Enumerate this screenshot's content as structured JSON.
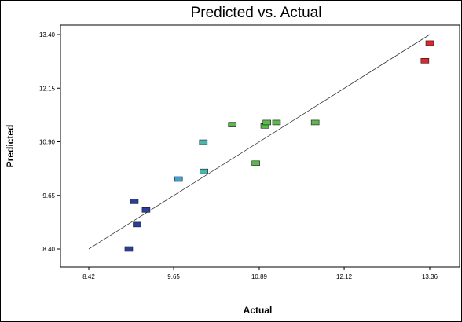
{
  "chart_data": {
    "type": "scatter",
    "title": "Predicted vs. Actual",
    "xlabel": "Actual",
    "ylabel": "Predicted",
    "xlim": [
      8.42,
      13.36
    ],
    "ylim": [
      8.4,
      13.4
    ],
    "x_ticks": [
      "8.42",
      "9.65",
      "10.89",
      "12.12",
      "13.36"
    ],
    "y_ticks": [
      "8.40",
      "9.65",
      "10.90",
      "12.15",
      "13.40"
    ],
    "reference_line": {
      "x": [
        8.42,
        13.36
      ],
      "y": [
        8.4,
        13.4
      ]
    },
    "points": [
      {
        "x": 9.0,
        "y": 8.4,
        "color": "#2a3f9a"
      },
      {
        "x": 9.12,
        "y": 8.97,
        "color": "#2a3f9a"
      },
      {
        "x": 9.08,
        "y": 9.51,
        "color": "#2a3f9a"
      },
      {
        "x": 9.25,
        "y": 9.31,
        "color": "#2a3f9a"
      },
      {
        "x": 9.72,
        "y": 10.03,
        "color": "#3ea1d6"
      },
      {
        "x": 10.09,
        "y": 10.21,
        "color": "#4bb6b0"
      },
      {
        "x": 10.08,
        "y": 10.89,
        "color": "#4bb6b0"
      },
      {
        "x": 10.5,
        "y": 11.3,
        "color": "#5bb84a"
      },
      {
        "x": 10.84,
        "y": 10.4,
        "color": "#5bb84a"
      },
      {
        "x": 10.97,
        "y": 11.27,
        "color": "#5bb84a"
      },
      {
        "x": 11.0,
        "y": 11.35,
        "color": "#5bb84a"
      },
      {
        "x": 11.14,
        "y": 11.35,
        "color": "#5bb84a"
      },
      {
        "x": 11.7,
        "y": 11.35,
        "color": "#5bb84a"
      },
      {
        "x": 13.29,
        "y": 12.79,
        "color": "#e0262a"
      },
      {
        "x": 13.36,
        "y": 13.2,
        "color": "#e0262a"
      }
    ]
  }
}
